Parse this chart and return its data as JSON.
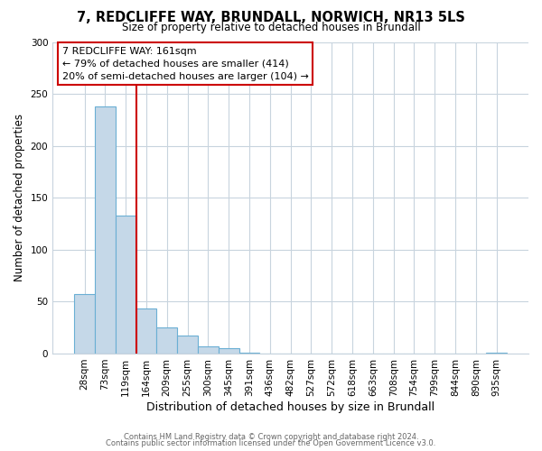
{
  "title": "7, REDCLIFFE WAY, BRUNDALL, NORWICH, NR13 5LS",
  "subtitle": "Size of property relative to detached houses in Brundall",
  "xlabel": "Distribution of detached houses by size in Brundall",
  "ylabel": "Number of detached properties",
  "bar_labels": [
    "28sqm",
    "73sqm",
    "119sqm",
    "164sqm",
    "209sqm",
    "255sqm",
    "300sqm",
    "345sqm",
    "391sqm",
    "436sqm",
    "482sqm",
    "527sqm",
    "572sqm",
    "618sqm",
    "663sqm",
    "708sqm",
    "754sqm",
    "799sqm",
    "844sqm",
    "890sqm",
    "935sqm"
  ],
  "bar_values": [
    57,
    238,
    133,
    43,
    25,
    17,
    7,
    5,
    1,
    0,
    0,
    0,
    0,
    0,
    0,
    0,
    0,
    0,
    0,
    0,
    1
  ],
  "bar_color": "#c5d8e8",
  "bar_edge_color": "#6aafd4",
  "ylim": [
    0,
    300
  ],
  "yticks": [
    0,
    50,
    100,
    150,
    200,
    250,
    300
  ],
  "vline_color": "#cc0000",
  "annotation_title": "7 REDCLIFFE WAY: 161sqm",
  "annotation_line1": "← 79% of detached houses are smaller (414)",
  "annotation_line2": "20% of semi-detached houses are larger (104) →",
  "annotation_box_color": "#ffffff",
  "annotation_box_edge": "#cc0000",
  "footer1": "Contains HM Land Registry data © Crown copyright and database right 2024.",
  "footer2": "Contains public sector information licensed under the Open Government Licence v3.0.",
  "background_color": "#ffffff",
  "grid_color": "#c8d4de"
}
